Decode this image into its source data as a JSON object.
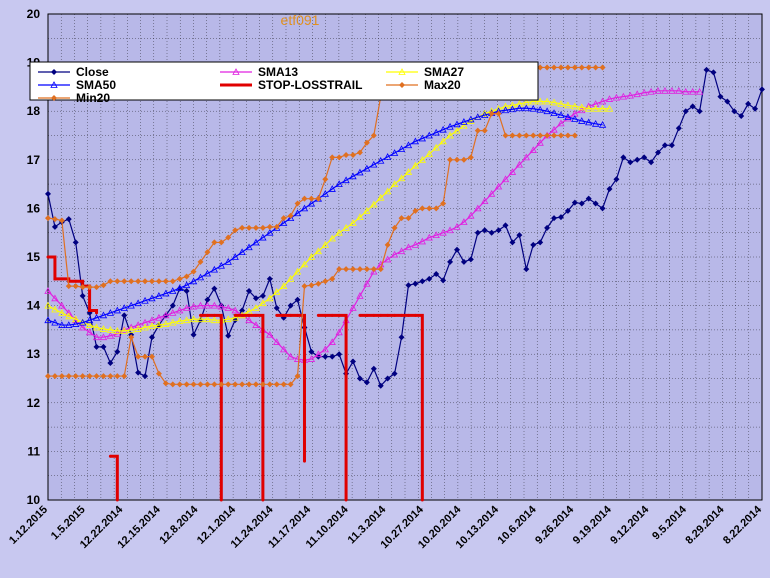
{
  "chart_data": {
    "type": "line",
    "title": "etf091",
    "ylim": [
      10,
      20
    ],
    "yticks": [
      "10",
      "11",
      "12",
      "13",
      "14",
      "15",
      "16",
      "17",
      "18",
      "19",
      "20"
    ],
    "xlabels": [
      "1.12.2015",
      "1.5.2015",
      "12.22.2014",
      "12.15.2014",
      "12.8.2014",
      "12.1.2014",
      "11.24.2014",
      "11.17.2014",
      "11.10.2014",
      "11.3.2014",
      "10.27.2014",
      "10.20.2014",
      "10.13.2014",
      "10.6.2014",
      "9.26.2014",
      "9.19.2014",
      "9.12.2014",
      "9.5.2014",
      "8.29.2014",
      "8.22.2014"
    ],
    "grid": true,
    "legend_position": "top",
    "series": [
      {
        "name": "Close",
        "color": "#000080",
        "marker": "diamond",
        "values": [
          16.3,
          15.62,
          15.72,
          15.78,
          15.3,
          14.2,
          13.85,
          13.15,
          13.15,
          12.82,
          13.05,
          13.8,
          13.4,
          12.62,
          12.55,
          13.35,
          13.6,
          13.8,
          14.0,
          14.35,
          14.3,
          13.4,
          13.7,
          14.12,
          14.35,
          14.0,
          13.38,
          13.7,
          13.9,
          14.3,
          14.15,
          14.2,
          14.55,
          13.95,
          13.75,
          14.0,
          14.12,
          13.55,
          13.05,
          12.95,
          12.95,
          12.95,
          13.0,
          12.6,
          12.85,
          12.5,
          12.42,
          12.7,
          12.35,
          12.5,
          12.6,
          13.35,
          14.42,
          14.45,
          14.5,
          14.55,
          14.65,
          14.52,
          14.9,
          15.15,
          14.9,
          14.95,
          15.5,
          15.55,
          15.5,
          15.55,
          15.65,
          15.3,
          15.45,
          14.75,
          15.25,
          15.3,
          15.6,
          15.8,
          15.82,
          15.95,
          16.12,
          16.1,
          16.2,
          16.1,
          16.0,
          16.4,
          16.6,
          17.05,
          16.95,
          17.0,
          17.05,
          16.95,
          17.15,
          17.3,
          17.3,
          17.65,
          18.0,
          18.1,
          18.0,
          18.85,
          18.8,
          18.3,
          18.2,
          18.0,
          17.9,
          18.15,
          18.05,
          18.45
        ]
      },
      {
        "name": "SMA13",
        "color": "#e020e0",
        "marker": "triangle",
        "values": [
          14.3,
          14.15,
          14.0,
          13.85,
          13.7,
          13.55,
          13.45,
          13.35,
          13.35,
          13.38,
          13.42,
          13.5,
          13.55,
          13.6,
          13.65,
          13.7,
          13.75,
          13.8,
          13.85,
          13.9,
          13.95,
          13.98,
          14.0,
          14.0,
          14.0,
          13.98,
          13.95,
          13.9,
          13.8,
          13.7,
          13.6,
          13.5,
          13.4,
          13.25,
          13.1,
          12.95,
          12.9,
          12.88,
          12.9,
          13.0,
          13.1,
          13.25,
          13.45,
          13.7,
          13.95,
          14.2,
          14.45,
          14.7,
          14.85,
          14.95,
          15.05,
          15.12,
          15.2,
          15.25,
          15.32,
          15.4,
          15.45,
          15.5,
          15.55,
          15.62,
          15.72,
          15.85,
          16.0,
          16.15,
          16.3,
          16.45,
          16.6,
          16.75,
          16.9,
          17.05,
          17.2,
          17.35,
          17.5,
          17.62,
          17.75,
          17.85,
          17.95,
          18.02,
          18.1,
          18.15,
          18.2,
          18.25,
          18.28,
          18.3,
          18.32,
          18.35,
          18.38,
          18.4,
          18.42,
          18.42,
          18.42,
          18.42,
          18.4,
          18.4,
          18.4
        ]
      },
      {
        "name": "SMA27",
        "color": "#ffff00",
        "marker": "triangle",
        "values": [
          14.0,
          13.92,
          13.85,
          13.78,
          13.72,
          13.66,
          13.6,
          13.55,
          13.52,
          13.5,
          13.48,
          13.48,
          13.5,
          13.52,
          13.55,
          13.58,
          13.6,
          13.62,
          13.65,
          13.68,
          13.7,
          13.72,
          13.72,
          13.72,
          13.7,
          13.7,
          13.72,
          13.75,
          13.8,
          13.88,
          13.95,
          14.05,
          14.15,
          14.28,
          14.4,
          14.55,
          14.7,
          14.85,
          15.0,
          15.12,
          15.25,
          15.38,
          15.5,
          15.6,
          15.7,
          15.82,
          15.95,
          16.08,
          16.22,
          16.35,
          16.5,
          16.62,
          16.75,
          16.88,
          17.0,
          17.12,
          17.25,
          17.38,
          17.5,
          17.6,
          17.7,
          17.8,
          17.88,
          17.95,
          18.0,
          18.05,
          18.1,
          18.12,
          18.15,
          18.18,
          18.2,
          18.2,
          18.2,
          18.18,
          18.15,
          18.12,
          18.1,
          18.08,
          18.05,
          18.05,
          18.05,
          18.05
        ]
      },
      {
        "name": "SMA50",
        "color": "#0000ff",
        "marker": "triangle",
        "values": [
          13.7,
          13.65,
          13.6,
          13.6,
          13.62,
          13.65,
          13.7,
          13.75,
          13.8,
          13.85,
          13.9,
          13.95,
          14.0,
          14.05,
          14.1,
          14.15,
          14.2,
          14.25,
          14.3,
          14.36,
          14.42,
          14.5,
          14.58,
          14.66,
          14.74,
          14.82,
          14.9,
          15.0,
          15.1,
          15.2,
          15.3,
          15.4,
          15.5,
          15.6,
          15.7,
          15.8,
          15.9,
          16.0,
          16.1,
          16.2,
          16.3,
          16.4,
          16.5,
          16.58,
          16.66,
          16.74,
          16.82,
          16.9,
          16.98,
          17.06,
          17.14,
          17.22,
          17.3,
          17.38,
          17.44,
          17.5,
          17.56,
          17.62,
          17.68,
          17.73,
          17.78,
          17.83,
          17.88,
          17.92,
          17.96,
          18.0,
          18.02,
          18.04,
          18.06,
          18.06,
          18.05,
          18.03,
          18.0,
          17.96,
          17.92,
          17.88,
          17.84,
          17.8,
          17.77,
          17.74,
          17.72
        ]
      },
      {
        "name": "STOP-LOSSTRAIL",
        "color": "#e00000",
        "marker": "dot",
        "values": [
          15.0,
          14.55,
          14.55,
          14.5,
          14.5,
          14.4,
          13.9,
          13.85,
          null,
          10.9,
          10.0,
          null,
          null,
          null,
          null,
          null,
          null,
          null,
          null,
          null,
          null,
          null,
          13.8,
          13.8,
          13.8,
          10.0,
          null,
          13.8,
          13.8,
          13.8,
          13.8,
          10.0,
          null,
          13.8,
          13.8,
          13.8,
          13.8,
          10.8,
          null,
          13.8,
          13.8,
          13.8,
          13.8,
          10.0,
          null,
          13.8,
          13.8,
          13.8,
          13.8,
          13.8,
          13.8,
          13.8,
          13.8,
          13.8,
          10.0
        ]
      },
      {
        "name": "Max20",
        "color": "#e07020",
        "marker": "diamond",
        "values": [
          15.8,
          15.78,
          15.75,
          14.4,
          14.4,
          14.38,
          14.38,
          14.38,
          14.42,
          14.5,
          14.5,
          14.5,
          14.5,
          14.5,
          14.5,
          14.5,
          14.5,
          14.5,
          14.5,
          14.55,
          14.6,
          14.7,
          14.9,
          15.1,
          15.3,
          15.3,
          15.4,
          15.55,
          15.6,
          15.6,
          15.6,
          15.6,
          15.62,
          15.62,
          15.8,
          15.85,
          16.1,
          16.2,
          16.2,
          16.2,
          16.6,
          17.05,
          17.05,
          17.1,
          17.1,
          17.15,
          17.35,
          17.5,
          18.3,
          18.3,
          18.85,
          18.85,
          18.85,
          18.85,
          18.85,
          18.85,
          18.85,
          18.85,
          18.85,
          18.85,
          18.85,
          18.85,
          18.85,
          18.85,
          18.85,
          18.85,
          18.85,
          18.9,
          18.9,
          18.9,
          18.9,
          18.9,
          18.9,
          18.9,
          18.9,
          18.9,
          18.9,
          18.9,
          18.9,
          18.9,
          18.9
        ]
      },
      {
        "name": "Min20",
        "color": "#e07020",
        "marker": "diamond",
        "values": [
          12.55,
          12.55,
          12.55,
          12.55,
          12.55,
          12.55,
          12.55,
          12.55,
          12.55,
          12.55,
          12.55,
          12.55,
          13.35,
          12.95,
          12.95,
          12.95,
          12.6,
          12.4,
          12.38,
          12.38,
          12.38,
          12.38,
          12.38,
          12.38,
          12.38,
          12.38,
          12.38,
          12.38,
          12.38,
          12.38,
          12.38,
          12.38,
          12.38,
          12.38,
          12.38,
          12.38,
          12.55,
          14.4,
          14.42,
          14.45,
          14.5,
          14.55,
          14.75,
          14.75,
          14.75,
          14.75,
          14.75,
          14.75,
          14.75,
          15.25,
          15.6,
          15.8,
          15.8,
          15.95,
          16.0,
          16.0,
          16.0,
          16.1,
          17.0,
          17.0,
          17.0,
          17.05,
          17.6,
          17.6,
          17.95,
          17.95,
          17.5,
          17.5,
          17.5,
          17.5,
          17.5,
          17.5,
          17.5,
          17.5,
          17.5,
          17.5,
          17.5
        ]
      }
    ]
  }
}
